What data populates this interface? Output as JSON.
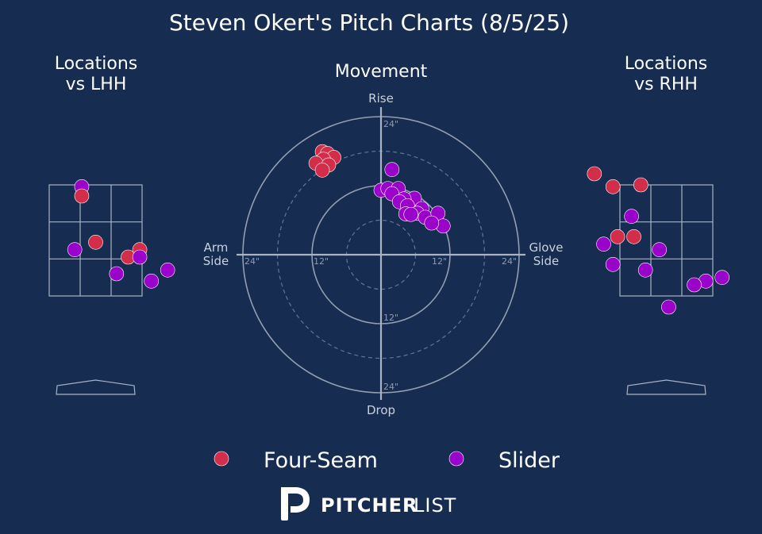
{
  "title": "Steven Okert's Pitch Charts (8/5/25)",
  "colors": {
    "background": "#162c50",
    "four_seam": "#d22d49",
    "slider": "#9a03c9",
    "lines": "#a9b3c2"
  },
  "logo": {
    "bold": "PITCHER",
    "light": "LIST",
    "icon": "pitcherlist-logo-icon"
  },
  "chart_data": [
    {
      "type": "scatter",
      "name": "locations-lhh",
      "title": "Locations\nvs LHH",
      "points": [
        {
          "pitch": "Slider",
          "x": -0.3,
          "y": 3.95
        },
        {
          "pitch": "Four-Seam",
          "x": -0.3,
          "y": 3.7
        },
        {
          "pitch": "Four-Seam",
          "x": -0.0,
          "y": 2.45
        },
        {
          "pitch": "Slider",
          "x": -0.45,
          "y": 2.25
        },
        {
          "pitch": "Four-Seam",
          "x": 0.95,
          "y": 2.25
        },
        {
          "pitch": "Four-Seam",
          "x": 0.7,
          "y": 2.05
        },
        {
          "pitch": "Slider",
          "x": 0.95,
          "y": 2.05
        },
        {
          "pitch": "Slider",
          "x": 0.45,
          "y": 1.6
        },
        {
          "pitch": "Slider",
          "x": 1.55,
          "y": 1.7
        },
        {
          "pitch": "Slider",
          "x": 1.2,
          "y": 1.4
        }
      ]
    },
    {
      "type": "scatter",
      "name": "movement",
      "title": "Movement",
      "axis_labels": {
        "top": "Rise",
        "bottom": "Drop",
        "left": "Arm\nSide",
        "right": "Glove\nSide"
      },
      "rings": [
        6,
        12,
        18,
        24
      ],
      "ring_labels": [
        "12\"",
        "24\""
      ],
      "points": [
        {
          "pitch": "Four-Seam",
          "x": -10.2,
          "y": 17.9
        },
        {
          "pitch": "Four-Seam",
          "x": -9.3,
          "y": 17.6
        },
        {
          "pitch": "Four-Seam",
          "x": -8.2,
          "y": 16.9
        },
        {
          "pitch": "Four-Seam",
          "x": -10.0,
          "y": 16.6
        },
        {
          "pitch": "Four-Seam",
          "x": -11.3,
          "y": 15.9
        },
        {
          "pitch": "Four-Seam",
          "x": -9.1,
          "y": 15.6
        },
        {
          "pitch": "Four-Seam",
          "x": -10.2,
          "y": 14.7
        },
        {
          "pitch": "Slider",
          "x": 1.9,
          "y": 14.8
        },
        {
          "pitch": "Slider",
          "x": 0.0,
          "y": 11.2
        },
        {
          "pitch": "Slider",
          "x": 1.2,
          "y": 11.5
        },
        {
          "pitch": "Slider",
          "x": 3.0,
          "y": 11.5
        },
        {
          "pitch": "Slider",
          "x": 1.9,
          "y": 10.6
        },
        {
          "pitch": "Slider",
          "x": 5.8,
          "y": 9.8
        },
        {
          "pitch": "Slider",
          "x": 4.0,
          "y": 9.7
        },
        {
          "pitch": "Slider",
          "x": 3.2,
          "y": 9.2
        },
        {
          "pitch": "Slider",
          "x": 4.6,
          "y": 8.5
        },
        {
          "pitch": "Slider",
          "x": 7.1,
          "y": 8.0
        },
        {
          "pitch": "Slider",
          "x": 4.3,
          "y": 7.1
        },
        {
          "pitch": "Slider",
          "x": 6.3,
          "y": 7.2
        },
        {
          "pitch": "Slider",
          "x": 5.2,
          "y": 7.0
        },
        {
          "pitch": "Slider",
          "x": 7.7,
          "y": 6.5
        },
        {
          "pitch": "Slider",
          "x": 9.9,
          "y": 7.2
        },
        {
          "pitch": "Slider",
          "x": 10.8,
          "y": 5.0
        },
        {
          "pitch": "Slider",
          "x": 8.8,
          "y": 5.5
        }
      ]
    },
    {
      "type": "scatter",
      "name": "locations-rhh",
      "title": "Locations\nvs RHH",
      "points": [
        {
          "pitch": "Four-Seam",
          "x": -1.55,
          "y": 4.3
        },
        {
          "pitch": "Four-Seam",
          "x": -1.15,
          "y": 3.95
        },
        {
          "pitch": "Four-Seam",
          "x": -0.55,
          "y": 4.0
        },
        {
          "pitch": "Slider",
          "x": -0.75,
          "y": 3.15
        },
        {
          "pitch": "Four-Seam",
          "x": -1.05,
          "y": 2.6
        },
        {
          "pitch": "Four-Seam",
          "x": -0.7,
          "y": 2.6
        },
        {
          "pitch": "Slider",
          "x": -1.35,
          "y": 2.4
        },
        {
          "pitch": "Slider",
          "x": -0.15,
          "y": 2.25
        },
        {
          "pitch": "Slider",
          "x": -1.15,
          "y": 1.85
        },
        {
          "pitch": "Slider",
          "x": -0.45,
          "y": 1.7
        },
        {
          "pitch": "Slider",
          "x": 1.2,
          "y": 1.5
        },
        {
          "pitch": "Slider",
          "x": 0.85,
          "y": 1.4
        },
        {
          "pitch": "Slider",
          "x": 0.6,
          "y": 1.3
        },
        {
          "pitch": "Slider",
          "x": 0.05,
          "y": 0.7
        }
      ]
    }
  ],
  "legend": [
    {
      "label": "Four-Seam",
      "pitch": "Four-Seam"
    },
    {
      "label": "Slider",
      "pitch": "Slider"
    }
  ]
}
